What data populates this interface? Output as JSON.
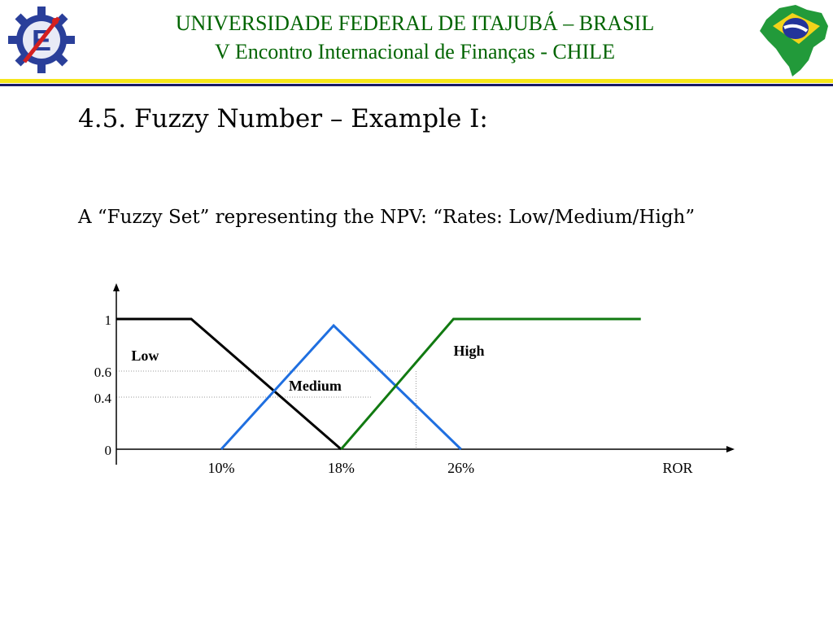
{
  "header": {
    "line1": "UNIVERSIDADE FEDERAL DE ITAJUBÁ – BRASIL",
    "line2": "V Encontro Internacional de Finanças - CHILE",
    "color": "#006400"
  },
  "logos": {
    "left_icon": "university-gear-logo-icon",
    "right_icon": "brazil-map-flag-icon"
  },
  "slide": {
    "title": "4.5. Fuzzy Number – Example I:",
    "subtitle": "A “Fuzzy Set” representing the NPV:  “Rates: Low/Medium/High”"
  },
  "chart_data": {
    "type": "line",
    "xlabel": "ROR",
    "x_ticks": [
      {
        "value": 10,
        "label": "10%"
      },
      {
        "value": 18,
        "label": "18%"
      },
      {
        "value": 26,
        "label": "26%"
      }
    ],
    "y_ticks": [
      {
        "value": 0,
        "label": "0"
      },
      {
        "value": 0.4,
        "label": "0.4"
      },
      {
        "value": 0.6,
        "label": "0.6"
      },
      {
        "value": 1,
        "label": "1"
      }
    ],
    "xlim": [
      3,
      41
    ],
    "ylim": [
      0,
      1
    ],
    "guides": [
      {
        "type": "h",
        "y": 0.6,
        "x_to": 22
      },
      {
        "type": "h",
        "y": 0.4,
        "x_to": 20
      },
      {
        "type": "v",
        "x": 23,
        "y_to": 0.6
      }
    ],
    "series": [
      {
        "name": "Low",
        "color": "#000000",
        "points": [
          [
            3,
            1
          ],
          [
            8,
            1
          ],
          [
            18,
            0
          ]
        ],
        "label_at": [
          4,
          0.68
        ]
      },
      {
        "name": "Medium",
        "color": "#1f6fe0",
        "points": [
          [
            10,
            0
          ],
          [
            17.5,
            0.95
          ],
          [
            26,
            0
          ]
        ],
        "label_at": [
          14.5,
          0.45
        ]
      },
      {
        "name": "High",
        "color": "#117a11",
        "points": [
          [
            18,
            0
          ],
          [
            25.5,
            1
          ],
          [
            38,
            1
          ]
        ],
        "label_at": [
          25.5,
          0.72
        ]
      }
    ]
  }
}
